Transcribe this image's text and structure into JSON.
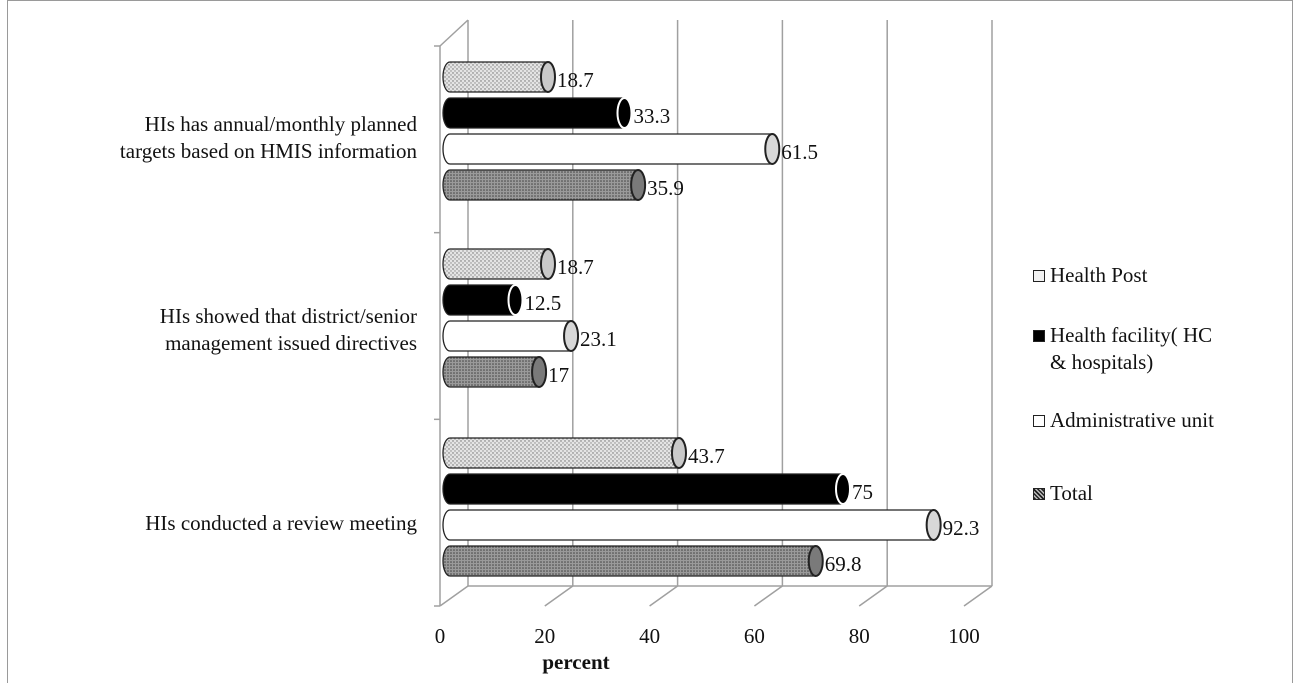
{
  "chart_data": {
    "type": "bar",
    "orientation": "horizontal",
    "style": "3d-cylinder",
    "categories": [
      "HIs has annual/monthly planned targets based on HMIS information",
      "HIs showed that district/senior management issued directives",
      "HIs conducted a review meeting"
    ],
    "category_lines": [
      [
        "HIs has annual/monthly planned",
        "targets based on HMIS information"
      ],
      [
        "HIs showed that district/senior",
        "management issued directives"
      ],
      [
        "HIs conducted a review meeting"
      ]
    ],
    "series": [
      {
        "name": "Health Post",
        "values": [
          18.7,
          18.7,
          43.7
        ],
        "labels": [
          "18.7",
          "18.7",
          "43.7"
        ],
        "fill": "dotted",
        "color": "#d9d9d9"
      },
      {
        "name": "Health facility( HC & hospitals)",
        "values": [
          33.3,
          12.5,
          75
        ],
        "labels": [
          "33.3",
          "12.5",
          "75"
        ],
        "fill": "solid",
        "color": "#000000"
      },
      {
        "name": "Administrative unit",
        "values": [
          61.5,
          23.1,
          92.3
        ],
        "labels": [
          "61.5",
          "23.1",
          "92.3"
        ],
        "fill": "solid",
        "color": "#ffffff"
      },
      {
        "name": "Total",
        "values": [
          35.9,
          17,
          69.8
        ],
        "labels": [
          "35.9",
          "17",
          "69.8"
        ],
        "fill": "dense-dotted",
        "color": "#8c8c8c"
      }
    ],
    "legend_lines": [
      [
        "Health Post"
      ],
      [
        "Health facility( HC",
        "& hospitals)"
      ],
      [
        "Administrative unit"
      ],
      [
        "Total"
      ]
    ],
    "xlabel": "percent",
    "ylabel": "",
    "xlim": [
      0,
      100
    ],
    "xticks": [
      "0",
      "20",
      "40",
      "60",
      "80",
      "100"
    ],
    "grid": true,
    "legend_position": "right"
  }
}
